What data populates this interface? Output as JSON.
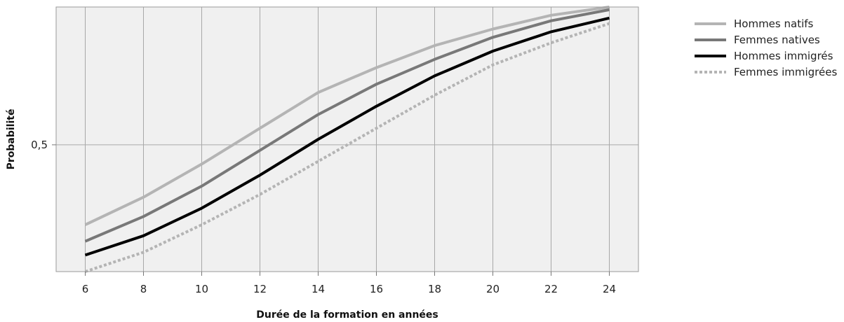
{
  "chart_data": {
    "type": "line",
    "title": "",
    "xlabel": "Durée de la formation en années",
    "ylabel": "Probabilité",
    "x": [
      6,
      8,
      10,
      12,
      14,
      16,
      18,
      20,
      22,
      24
    ],
    "x_tick_labels": [
      "6",
      "8",
      "10",
      "12",
      "14",
      "16",
      "18",
      "20",
      "22",
      "24"
    ],
    "xlim": [
      5,
      25
    ],
    "y_tick_values": [
      0.5
    ],
    "y_tick_labels": [
      "0,5"
    ],
    "ylim": [
      0.04,
      1.0
    ],
    "grid": true,
    "legend_position": "right",
    "series": [
      {
        "name": "Hommes natifs",
        "color": "#b4b4b4",
        "style": "solid",
        "values": [
          0.21,
          0.31,
          0.43,
          0.56,
          0.69,
          0.78,
          0.86,
          0.92,
          0.97,
          1.0
        ]
      },
      {
        "name": "Femmes natives",
        "color": "#787878",
        "style": "solid",
        "values": [
          0.15,
          0.24,
          0.35,
          0.48,
          0.61,
          0.72,
          0.81,
          0.89,
          0.95,
          0.99
        ]
      },
      {
        "name": "Hommes immigrés",
        "color": "#000000",
        "style": "solid",
        "values": [
          0.1,
          0.17,
          0.27,
          0.39,
          0.52,
          0.64,
          0.75,
          0.84,
          0.91,
          0.96
        ]
      },
      {
        "name": "Femmes immigrées",
        "color": "#b4b4b4",
        "style": "dotted",
        "values": [
          0.04,
          0.11,
          0.21,
          0.32,
          0.44,
          0.56,
          0.68,
          0.79,
          0.87,
          0.94
        ]
      }
    ]
  }
}
